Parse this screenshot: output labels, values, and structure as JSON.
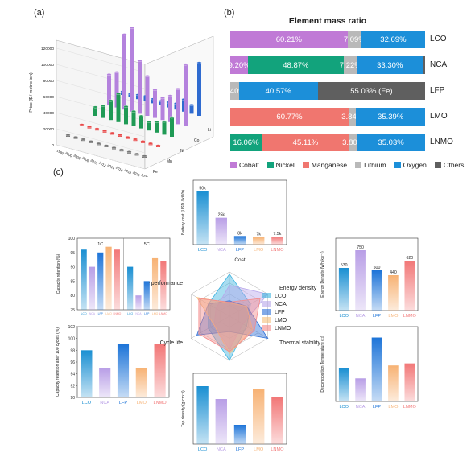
{
  "labels": {
    "a": "(a)",
    "b": "(b)",
    "c": "(c)"
  },
  "panel_a": {
    "zlabel": "Price ($ / metric ton)",
    "z_ticks": [
      "0",
      "20000",
      "40000",
      "60000",
      "80000",
      "100000",
      "120000"
    ],
    "year_labels": [
      "1990",
      "2000",
      "2005",
      "2008",
      "2010",
      "2012",
      "2014",
      "2016",
      "2018",
      "2020",
      "2022"
    ],
    "elements": [
      "Fe",
      "Mn",
      "Ni",
      "Co",
      "Li"
    ],
    "colors": {
      "Fe": "#777777",
      "Mn": "#e84a4a",
      "Ni": "#1f9a55",
      "Co": "#b482dd",
      "Li": "#2f6bd0"
    }
  },
  "chart_data": [
    {
      "type": "bar",
      "panel": "b",
      "title": "Element mass ratio",
      "orientation": "horizontal-stacked",
      "categories": [
        "LCO",
        "NCA",
        "LFP",
        "LMO",
        "LNMO"
      ],
      "segments": [
        [
          {
            "el": "Cobalt",
            "v": 60.21,
            "label": "60.21%"
          },
          {
            "el": "Lithium",
            "v": 7.09,
            "label": "7.09%"
          },
          {
            "el": "Oxygen",
            "v": 32.69,
            "label": "32.69%"
          }
        ],
        [
          {
            "el": "Cobalt",
            "v": 9.2,
            "label": "9.20%"
          },
          {
            "el": "Nickel",
            "v": 48.87,
            "label": "48.87%"
          },
          {
            "el": "Lithium",
            "v": 7.22,
            "label": "7.22%"
          },
          {
            "el": "Oxygen",
            "v": 33.3,
            "label": "33.30%"
          },
          {
            "el": "Others",
            "v": 1.41,
            "label": ""
          }
        ],
        [
          {
            "el": "Lithium",
            "v": 4.4,
            "label": "4.40%"
          },
          {
            "el": "Oxygen",
            "v": 40.57,
            "label": "40.57%"
          },
          {
            "el": "Others",
            "v": 55.03,
            "label": "55.03% (Fe)"
          }
        ],
        [
          {
            "el": "Manganese",
            "v": 60.77,
            "label": "60.77%"
          },
          {
            "el": "Lithium",
            "v": 3.84,
            "label": "3.84%"
          },
          {
            "el": "Oxygen",
            "v": 35.39,
            "label": "35.39%"
          }
        ],
        [
          {
            "el": "Nickel",
            "v": 16.06,
            "label": "16.06%"
          },
          {
            "el": "Manganese",
            "v": 45.11,
            "label": "45.11%"
          },
          {
            "el": "Lithium",
            "v": 3.8,
            "label": "3.80%"
          },
          {
            "el": "Oxygen",
            "v": 35.03,
            "label": "35.03%"
          }
        ]
      ],
      "legend": [
        "Cobalt",
        "Nickel",
        "Manganese",
        "Lithium",
        "Oxygen",
        "Others"
      ],
      "colors": {
        "Cobalt": "#c07ad6",
        "Nickel": "#12a37c",
        "Manganese": "#f0766f",
        "Lithium": "#b9b9b9",
        "Oxygen": "#1c8fd9",
        "Others": "#5f5f5f"
      }
    },
    {
      "type": "bar",
      "panel": "c-cost",
      "xlabel": "Cost",
      "ylabel": "Battery cost (USD / kWh)",
      "categories": [
        "LCO",
        "NCA",
        "LFP",
        "LMO",
        "LNMO"
      ],
      "values": [
        50,
        25,
        8,
        7,
        7.5
      ],
      "data_labels": [
        "50k",
        "25k",
        "8k",
        "7k",
        "7.5k"
      ],
      "ylim": [
        0,
        60
      ]
    },
    {
      "type": "bar",
      "panel": "c-capacity-retention",
      "ylabel": "Capacity retention (%)",
      "groups": [
        "1C",
        "5C"
      ],
      "categories": [
        "LCO",
        "NCA",
        "LFP",
        "LMO",
        "LNMO"
      ],
      "series": [
        {
          "name": "1C",
          "values": [
            96,
            90,
            95,
            97,
            96
          ]
        },
        {
          "name": "5C",
          "values": [
            90,
            80,
            85,
            93,
            92
          ]
        }
      ],
      "ylim": [
        75,
        100
      ],
      "y_ticks": [
        "75",
        "80",
        "85",
        "90",
        "95",
        "100"
      ]
    },
    {
      "type": "bar",
      "panel": "c-cycle-life",
      "ylabel": "Capacity retention after 100 cycles (%)",
      "categories": [
        "LCO",
        "NCA",
        "LFP",
        "LMO",
        "LNMO"
      ],
      "values": [
        98,
        95,
        99,
        95,
        99
      ],
      "ylim": [
        90,
        102
      ],
      "y_ticks": [
        "90",
        "92",
        "94",
        "96",
        "98",
        "100",
        "102"
      ]
    },
    {
      "type": "bar",
      "panel": "c-energy-density",
      "ylabel": "Energy Density (Wh·kg⁻¹)",
      "categories": [
        "LCO",
        "NCA",
        "LFP",
        "LMO",
        "LNMO"
      ],
      "values": [
        530,
        750,
        500,
        440,
        620
      ],
      "data_labels": [
        "530",
        "750",
        "500",
        "440",
        "620"
      ],
      "ylim": [
        0,
        900
      ]
    },
    {
      "type": "bar",
      "panel": "c-thermal-stability",
      "ylabel": "Decomposition Temperature (□)",
      "categories": [
        "LCO",
        "NCA",
        "LFP",
        "LMO",
        "LNMO"
      ],
      "values": [
        245,
        170,
        470,
        265,
        280
      ],
      "ylim": [
        0,
        550
      ]
    },
    {
      "type": "bar",
      "panel": "c-tap-density",
      "xlabel": "Tap density",
      "ylabel": "Tap density (g·cm⁻³)",
      "categories": [
        "LCO",
        "NCA",
        "LFP",
        "LMO",
        "LNMO"
      ],
      "values": [
        2.8,
        2.4,
        1.6,
        2.7,
        2.45
      ],
      "ylim": [
        1.0,
        3.2
      ]
    },
    {
      "type": "radar",
      "panel": "c-radar",
      "axes": [
        "Cost",
        "Energy density",
        "Thermal stability",
        "Tap density",
        "Cycle life",
        "Rate performance"
      ],
      "series": [
        {
          "name": "LCO",
          "values": [
            0.95,
            0.55,
            0.45,
            1.0,
            0.55,
            0.55
          ]
        },
        {
          "name": "NCA",
          "values": [
            0.7,
            1.0,
            0.35,
            0.75,
            0.4,
            0.35
          ]
        },
        {
          "name": "LFP",
          "values": [
            0.35,
            0.45,
            1.0,
            0.35,
            0.85,
            0.55
          ]
        },
        {
          "name": "LMO",
          "values": [
            0.3,
            0.45,
            0.6,
            0.85,
            0.4,
            0.85
          ]
        },
        {
          "name": "LNMO",
          "values": [
            0.32,
            0.8,
            0.65,
            0.8,
            0.8,
            0.8
          ]
        }
      ],
      "legend": [
        "LCO",
        "NCA",
        "LFP",
        "LMO",
        "LNMO"
      ]
    }
  ],
  "palette": {
    "LCO": "#1a8fd2",
    "NCA": "#b89ee6",
    "LFP": "#1d74d8",
    "LMO": "#f7b274",
    "LNMO": "#f27777"
  }
}
